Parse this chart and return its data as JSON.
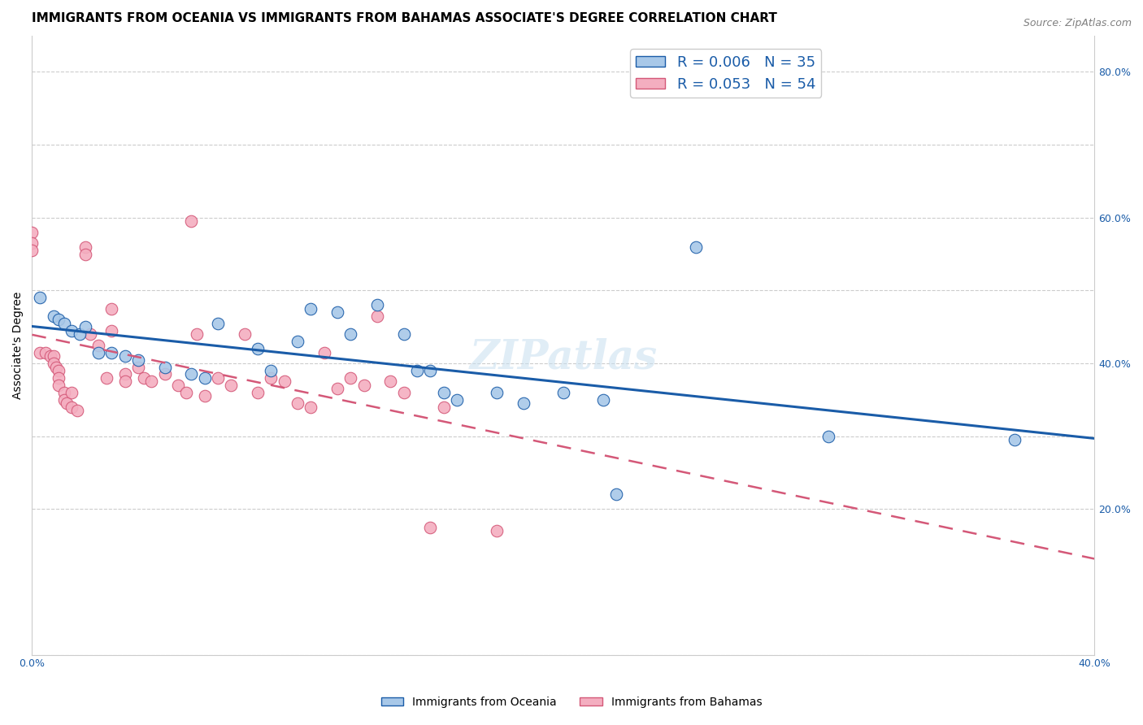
{
  "title": "IMMIGRANTS FROM OCEANIA VS IMMIGRANTS FROM BAHAMAS ASSOCIATE'S DEGREE CORRELATION CHART",
  "source": "Source: ZipAtlas.com",
  "ylabel": "Associate's Degree",
  "xlim": [
    0.0,
    0.4
  ],
  "ylim": [
    0.0,
    0.85
  ],
  "legend_r1": "R = 0.006",
  "legend_n1": "N = 35",
  "legend_r2": "R = 0.053",
  "legend_n2": "N = 54",
  "color_oceania": "#a8c8e8",
  "color_bahamas": "#f4aec0",
  "color_line_oceania": "#1a5ca8",
  "color_line_bahamas": "#d45878",
  "background_color": "#ffffff",
  "watermark": "ZIPatlas",
  "oceania_x": [
    0.003,
    0.008,
    0.01,
    0.012,
    0.015,
    0.018,
    0.02,
    0.025,
    0.03,
    0.035,
    0.04,
    0.05,
    0.06,
    0.065,
    0.07,
    0.085,
    0.09,
    0.1,
    0.105,
    0.115,
    0.12,
    0.13,
    0.14,
    0.145,
    0.15,
    0.155,
    0.16,
    0.175,
    0.185,
    0.2,
    0.215,
    0.22,
    0.25,
    0.3,
    0.37
  ],
  "oceania_y": [
    0.49,
    0.465,
    0.46,
    0.455,
    0.445,
    0.44,
    0.45,
    0.415,
    0.415,
    0.41,
    0.405,
    0.395,
    0.385,
    0.38,
    0.455,
    0.42,
    0.39,
    0.43,
    0.475,
    0.47,
    0.44,
    0.48,
    0.44,
    0.39,
    0.39,
    0.36,
    0.35,
    0.36,
    0.345,
    0.36,
    0.35,
    0.22,
    0.56,
    0.3,
    0.295
  ],
  "bahamas_x": [
    0.0,
    0.0,
    0.0,
    0.003,
    0.005,
    0.007,
    0.008,
    0.008,
    0.009,
    0.01,
    0.01,
    0.01,
    0.012,
    0.012,
    0.013,
    0.015,
    0.015,
    0.017,
    0.02,
    0.02,
    0.022,
    0.025,
    0.028,
    0.03,
    0.03,
    0.035,
    0.035,
    0.04,
    0.042,
    0.045,
    0.05,
    0.055,
    0.058,
    0.06,
    0.062,
    0.065,
    0.07,
    0.075,
    0.08,
    0.085,
    0.09,
    0.095,
    0.1,
    0.105,
    0.11,
    0.115,
    0.12,
    0.125,
    0.13,
    0.135,
    0.14,
    0.15,
    0.155,
    0.175
  ],
  "bahamas_y": [
    0.58,
    0.565,
    0.555,
    0.415,
    0.415,
    0.41,
    0.41,
    0.4,
    0.395,
    0.39,
    0.38,
    0.37,
    0.36,
    0.35,
    0.345,
    0.36,
    0.34,
    0.335,
    0.56,
    0.55,
    0.44,
    0.425,
    0.38,
    0.475,
    0.445,
    0.385,
    0.375,
    0.395,
    0.38,
    0.375,
    0.385,
    0.37,
    0.36,
    0.595,
    0.44,
    0.355,
    0.38,
    0.37,
    0.44,
    0.36,
    0.38,
    0.375,
    0.345,
    0.34,
    0.415,
    0.365,
    0.38,
    0.37,
    0.465,
    0.375,
    0.36,
    0.175,
    0.34,
    0.17
  ],
  "title_fontsize": 11,
  "axis_label_fontsize": 10,
  "tick_fontsize": 9,
  "legend_fontsize": 13,
  "source_fontsize": 9,
  "watermark_fontsize": 36
}
